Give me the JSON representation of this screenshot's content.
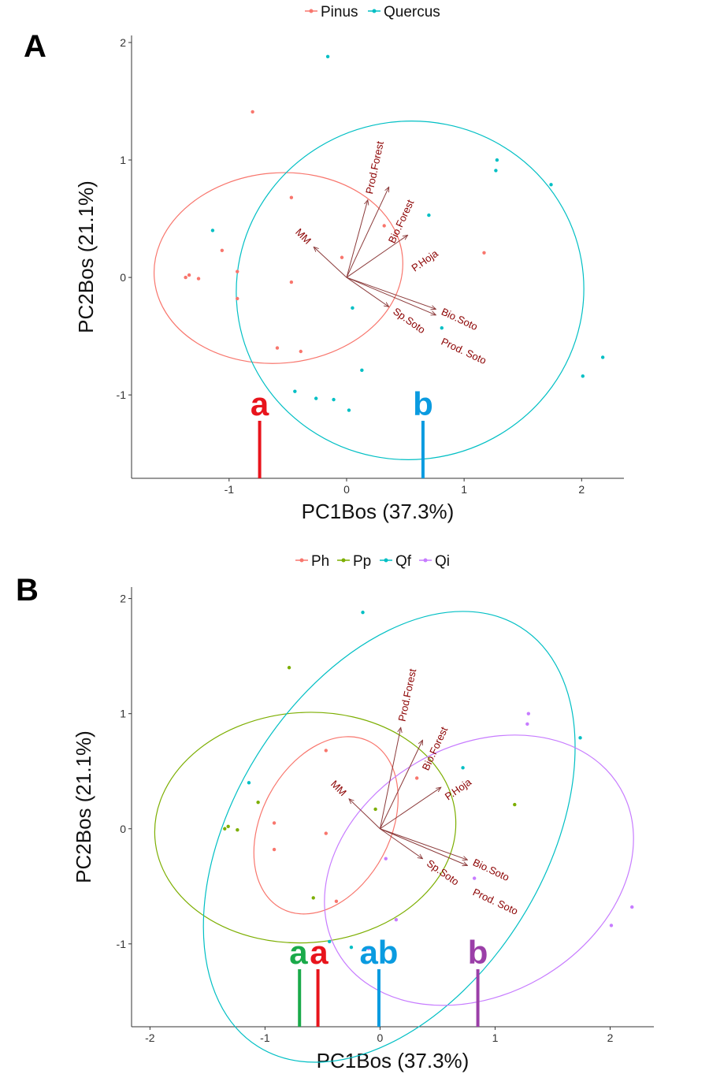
{
  "chart_data": [
    {
      "type": "scatter",
      "panel_label": "A",
      "xlabel": "PC1Bos (37.3%)",
      "ylabel": "PC2Bos (21.1%)",
      "xlim": [
        -1.83,
        2.36
      ],
      "ylim": [
        -1.71,
        2.06
      ],
      "xticks": [
        -1,
        0,
        1,
        2
      ],
      "yticks": [
        -1,
        0,
        1,
        2
      ],
      "grid": false,
      "legend_placement": "top",
      "series": [
        {
          "name": "Pinus",
          "color": "#F8766D",
          "points": [
            [
              -0.8,
              1.41
            ],
            [
              -0.47,
              0.68
            ],
            [
              0.32,
              0.44
            ],
            [
              -1.06,
              0.23
            ],
            [
              -0.04,
              0.17
            ],
            [
              1.17,
              0.21
            ],
            [
              -1.37,
              0.0
            ],
            [
              -1.34,
              0.02
            ],
            [
              -1.26,
              -0.01
            ],
            [
              -0.93,
              0.05
            ],
            [
              -0.47,
              -0.04
            ],
            [
              -0.93,
              -0.18
            ],
            [
              -0.59,
              -0.6
            ],
            [
              -0.39,
              -0.63
            ]
          ],
          "ellipse": {
            "center": [
              -0.58,
              0.08
            ],
            "semi_axes": [
              1.06,
              0.81
            ],
            "angle_deg": 5
          }
        },
        {
          "name": "Quercus",
          "color": "#00BFC4",
          "points": [
            [
              -0.16,
              1.88
            ],
            [
              1.28,
              1.0
            ],
            [
              1.27,
              0.91
            ],
            [
              1.74,
              0.79
            ],
            [
              0.7,
              0.53
            ],
            [
              -1.14,
              0.4
            ],
            [
              0.05,
              -0.26
            ],
            [
              0.81,
              -0.43
            ],
            [
              2.18,
              -0.68
            ],
            [
              2.01,
              -0.84
            ],
            [
              0.13,
              -0.79
            ],
            [
              -0.44,
              -0.97
            ],
            [
              -0.26,
              -1.03
            ],
            [
              -0.11,
              -1.04
            ],
            [
              0.02,
              -1.13
            ]
          ],
          "ellipse": {
            "center": [
              0.54,
              -0.11
            ],
            "semi_axes": [
              1.48,
              1.44
            ],
            "angle_deg": 10
          }
        }
      ],
      "loadings": [
        {
          "name": "Prod.Forest",
          "x": 0.18,
          "y": 0.66,
          "label_angle": -78
        },
        {
          "name": "Bio.Forest",
          "x": 0.36,
          "y": 0.77,
          "label_angle": -65
        },
        {
          "name": "P.Hoja",
          "x": 0.52,
          "y": 0.36,
          "label_angle": -35
        },
        {
          "name": "MM",
          "x": -0.28,
          "y": 0.26,
          "label_angle": 45
        },
        {
          "name": "Sp.Soto",
          "x": 0.36,
          "y": -0.25,
          "label_angle": 35
        },
        {
          "name": "Bio.Soto",
          "x": 0.76,
          "y": -0.27,
          "label_angle": 25
        },
        {
          "name": "Prod. Soto",
          "x": 0.76,
          "y": -0.32,
          "label_angle": 25
        }
      ],
      "loading_color": "#8b3a3a",
      "group_letters": [
        {
          "text": "a",
          "x": -0.74,
          "color": "#e8141c"
        },
        {
          "text": "b",
          "x": 0.65,
          "color": "#0a9be0"
        }
      ]
    },
    {
      "type": "scatter",
      "panel_label": "B",
      "xlabel": "PC1Bos (37.3%)",
      "ylabel": "PC2Bos (21.1%)",
      "xlim": [
        -2.16,
        2.38
      ],
      "ylim": [
        -1.72,
        2.1
      ],
      "xticks": [
        -2,
        -1,
        0,
        1,
        2
      ],
      "yticks": [
        -1,
        0,
        1,
        2
      ],
      "grid": false,
      "legend_placement": "top",
      "series": [
        {
          "name": "Ph",
          "color": "#F8766D",
          "points": [
            [
              -0.47,
              0.68
            ],
            [
              0.32,
              0.44
            ],
            [
              -0.92,
              0.05
            ],
            [
              -0.47,
              -0.04
            ],
            [
              -0.92,
              -0.18
            ],
            [
              -0.38,
              -0.63
            ]
          ],
          "ellipse": {
            "center": [
              -0.47,
              0.03
            ],
            "semi_axes": [
              0.82,
              0.56
            ],
            "angle_deg": 62
          }
        },
        {
          "name": "Pp",
          "color": "#7CAE00",
          "points": [
            [
              -0.79,
              1.4
            ],
            [
              -1.06,
              0.23
            ],
            [
              -0.04,
              0.17
            ],
            [
              1.17,
              0.21
            ],
            [
              -1.35,
              0.0
            ],
            [
              -1.32,
              0.02
            ],
            [
              -1.24,
              -0.01
            ],
            [
              -0.58,
              -0.6
            ]
          ],
          "ellipse": {
            "center": [
              -0.65,
              0.01
            ],
            "semi_axes": [
              1.31,
              1.0
            ],
            "angle_deg": 4
          }
        },
        {
          "name": "Qf",
          "color": "#00BFC4",
          "points": [
            [
              -0.15,
              1.88
            ],
            [
              1.74,
              0.79
            ],
            [
              0.72,
              0.53
            ],
            [
              -1.14,
              0.4
            ],
            [
              -0.44,
              -0.98
            ],
            [
              -0.25,
              -1.03
            ]
          ],
          "ellipse": {
            "center": [
              0.08,
              -0.07
            ],
            "semi_axes": [
              2.15,
              1.35
            ],
            "angle_deg": 58
          }
        },
        {
          "name": "Qi",
          "color": "#C77CFF",
          "points": [
            [
              1.29,
              1.0
            ],
            [
              1.28,
              0.91
            ],
            [
              0.05,
              -0.26
            ],
            [
              0.82,
              -0.43
            ],
            [
              2.19,
              -0.68
            ],
            [
              2.01,
              -0.84
            ],
            [
              0.14,
              -0.79
            ],
            [
              -0.1,
              -1.04
            ]
          ],
          "ellipse": {
            "center": [
              0.86,
              -0.36
            ],
            "semi_axes": [
              1.42,
              1.08
            ],
            "angle_deg": 30
          }
        }
      ],
      "loadings": [
        {
          "name": "Prod.Forest",
          "x": 0.18,
          "y": 0.88,
          "label_angle": -78
        },
        {
          "name": "Bio.Forest",
          "x": 0.37,
          "y": 0.77,
          "label_angle": -65
        },
        {
          "name": "P.Hoja",
          "x": 0.53,
          "y": 0.36,
          "label_angle": -35
        },
        {
          "name": "MM",
          "x": -0.27,
          "y": 0.26,
          "label_angle": 45
        },
        {
          "name": "Sp.Soto",
          "x": 0.37,
          "y": -0.26,
          "label_angle": 35
        },
        {
          "name": "Bio.Soto",
          "x": 0.76,
          "y": -0.27,
          "label_angle": 25
        },
        {
          "name": "Prod. Soto",
          "x": 0.76,
          "y": -0.32,
          "label_angle": 25
        }
      ],
      "loading_color": "#8b3a3a",
      "group_letters": [
        {
          "text": "a",
          "x": -0.7,
          "color": "#1aaa4a"
        },
        {
          "text": "a",
          "x": -0.54,
          "color": "#e8141c"
        },
        {
          "text": "ab",
          "x": -0.01,
          "color": "#0a9be0"
        },
        {
          "text": "b",
          "x": 0.85,
          "color": "#9b3fa8"
        }
      ]
    }
  ]
}
